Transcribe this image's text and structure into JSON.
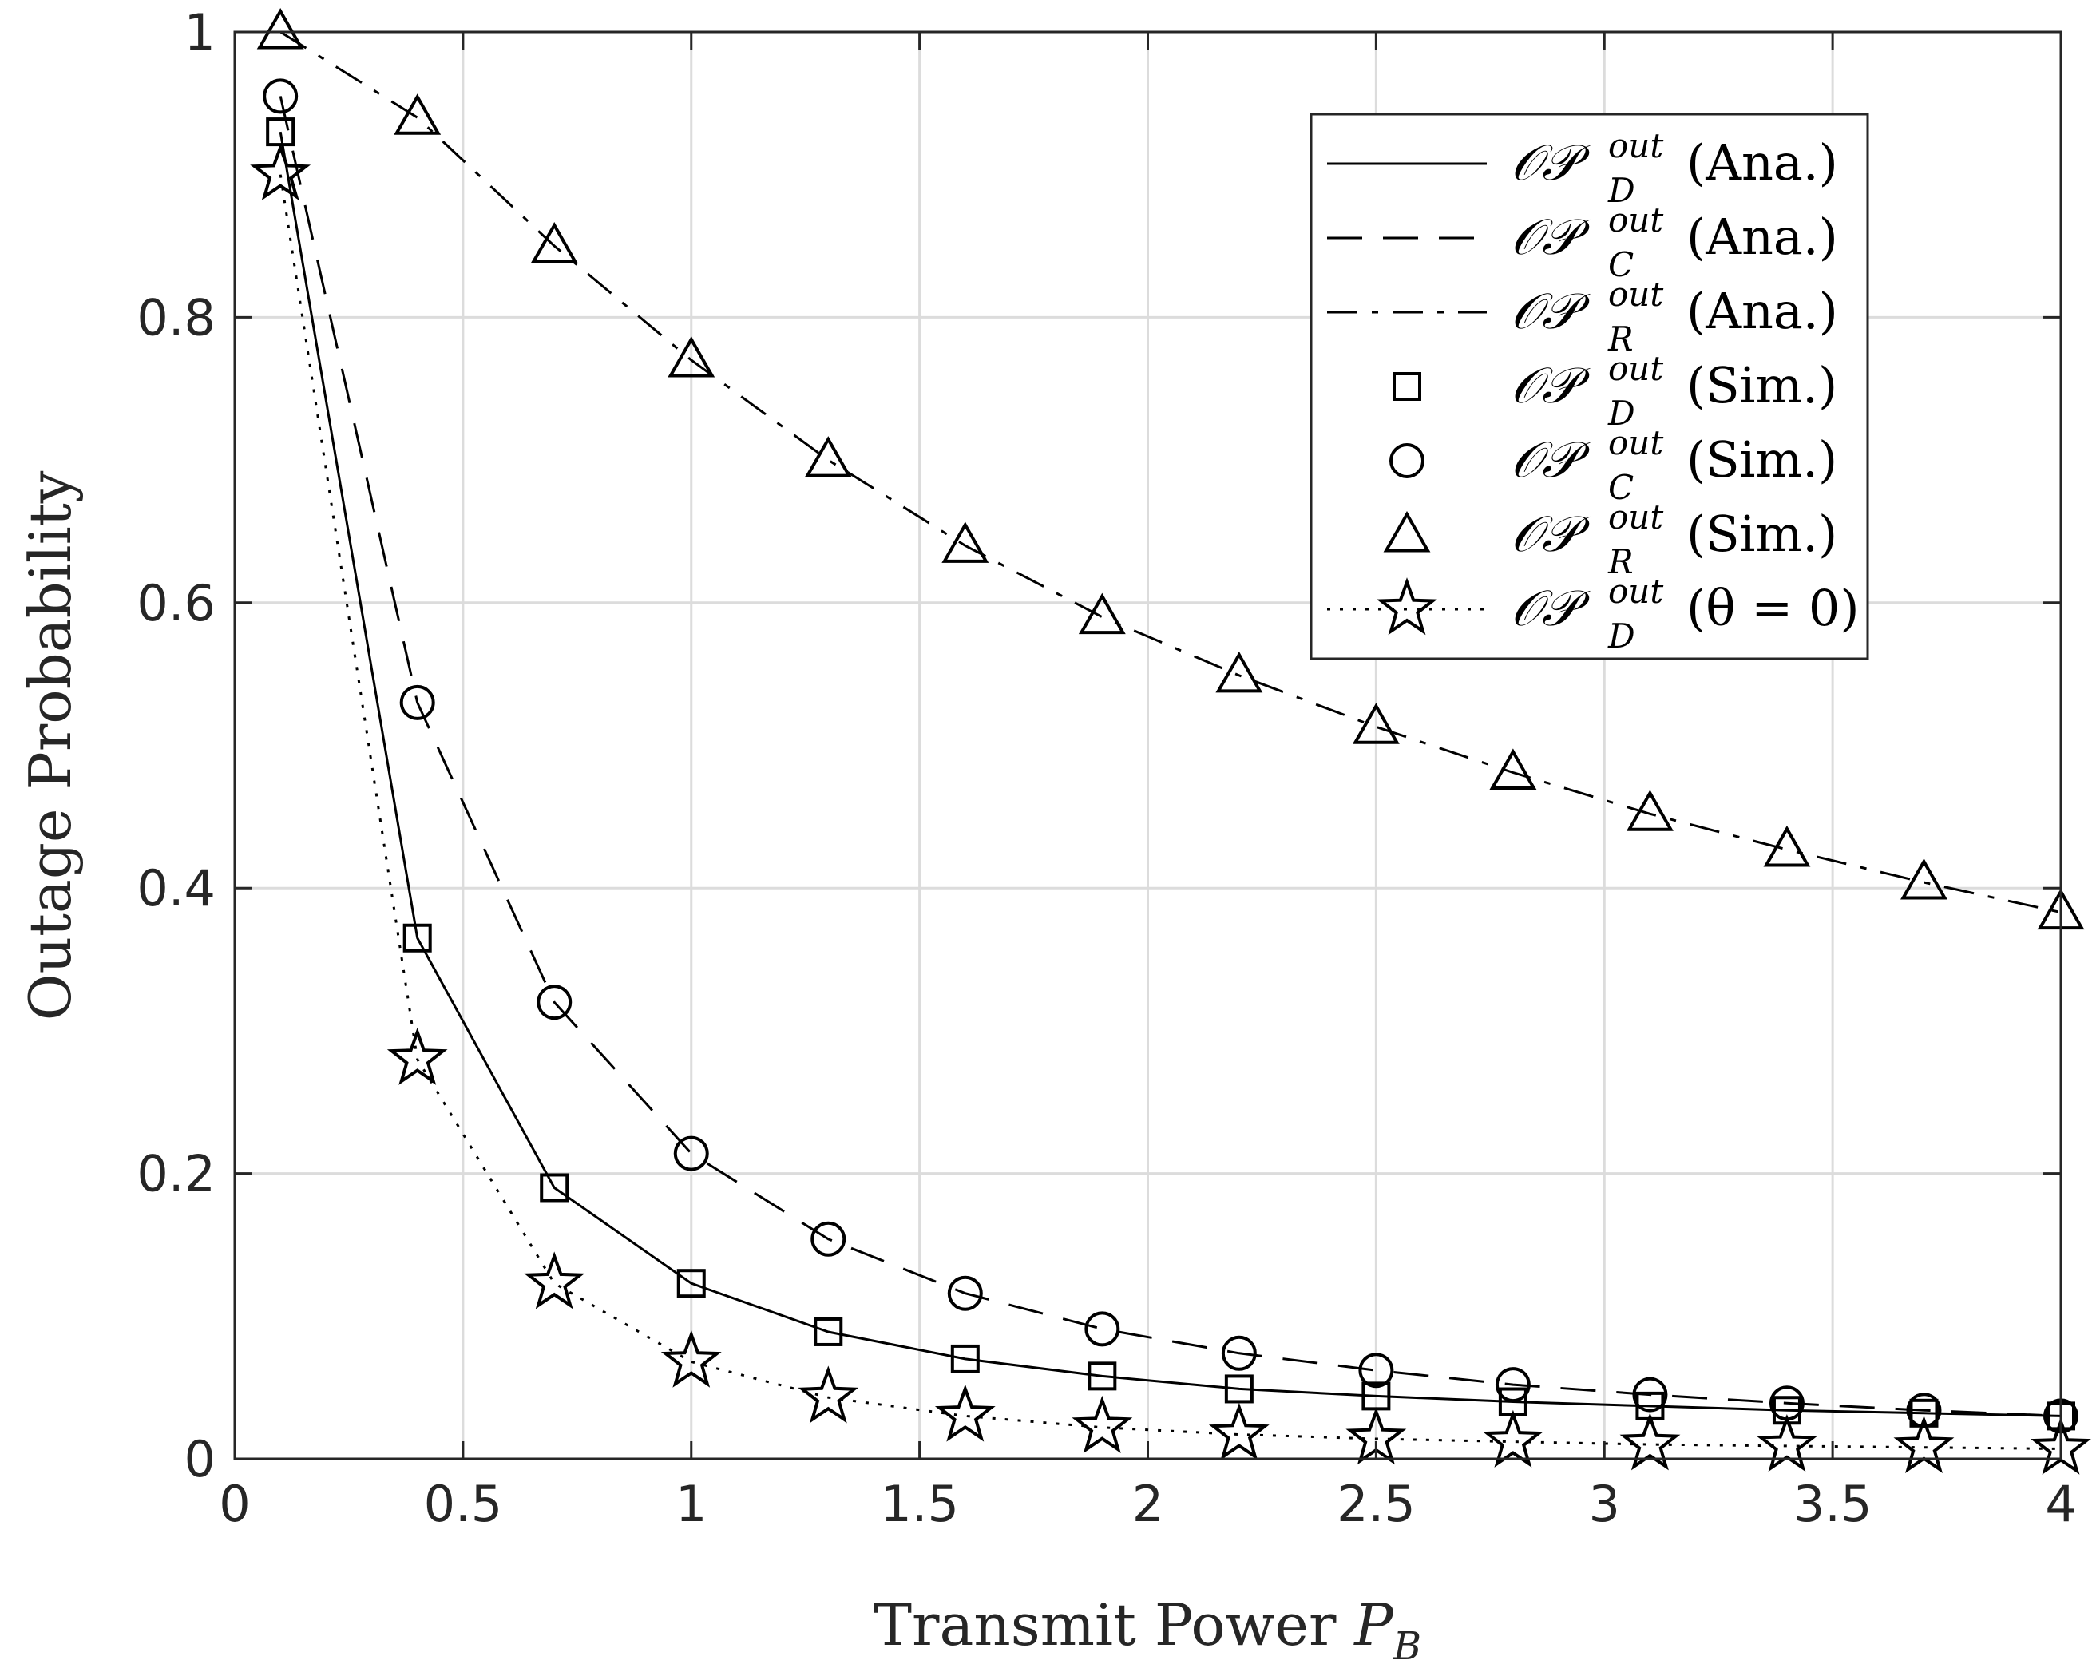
{
  "chart_data": {
    "type": "line",
    "title": "",
    "xlabel": "Transmit Power",
    "xlabel_symbol": "P",
    "xlabel_subscript": "B",
    "ylabel": "Outage Probability",
    "xlim": [
      0,
      4
    ],
    "ylim": [
      0,
      1
    ],
    "xticks": [
      0,
      0.5,
      1,
      1.5,
      2,
      2.5,
      3,
      3.5,
      4
    ],
    "xtick_labels": [
      "0",
      "0.5",
      "1",
      "1.5",
      "2",
      "2.5",
      "3",
      "3.5",
      "4"
    ],
    "yticks": [
      0,
      0.2,
      0.4,
      0.6,
      0.8,
      1
    ],
    "ytick_labels": [
      "0",
      "0.2",
      "0.4",
      "0.6",
      "0.8",
      "1"
    ],
    "grid": true,
    "legend_position": "top-right",
    "x": [
      0.1,
      0.4,
      0.7,
      1.0,
      1.3,
      1.6,
      1.9,
      2.2,
      2.5,
      2.8,
      3.1,
      3.4,
      3.7,
      4.0
    ],
    "series": [
      {
        "name": "OP_D^out (Ana.)",
        "label_sub": "D",
        "label_tail": "(Ana.)",
        "style": "solid",
        "marker": "none",
        "values": [
          0.93,
          0.365,
          0.19,
          0.123,
          0.089,
          0.07,
          0.058,
          0.049,
          0.044,
          0.04,
          0.037,
          0.034,
          0.032,
          0.03
        ]
      },
      {
        "name": "OP_C^out (Ana.)",
        "label_sub": "C",
        "label_tail": "(Ana.)",
        "style": "dashed",
        "marker": "none",
        "values": [
          0.955,
          0.53,
          0.32,
          0.214,
          0.154,
          0.116,
          0.091,
          0.074,
          0.062,
          0.052,
          0.045,
          0.039,
          0.034,
          0.03
        ]
      },
      {
        "name": "OP_R^out (Ana.)",
        "label_sub": "R",
        "label_tail": "(Ana.)",
        "style": "dashdot",
        "marker": "none",
        "values": [
          1.0,
          0.94,
          0.85,
          0.77,
          0.7,
          0.64,
          0.59,
          0.549,
          0.513,
          0.481,
          0.452,
          0.427,
          0.404,
          0.383
        ]
      },
      {
        "name": "OP_D^out (Sim.)",
        "label_sub": "D",
        "label_tail": "(Sim.)",
        "style": "none",
        "marker": "square",
        "values": [
          0.93,
          0.365,
          0.19,
          0.123,
          0.089,
          0.07,
          0.058,
          0.049,
          0.044,
          0.04,
          0.037,
          0.034,
          0.032,
          0.03
        ]
      },
      {
        "name": "OP_C^out (Sim.)",
        "label_sub": "C",
        "label_tail": "(Sim.)",
        "style": "none",
        "marker": "circle",
        "values": [
          0.955,
          0.53,
          0.32,
          0.214,
          0.154,
          0.116,
          0.091,
          0.074,
          0.062,
          0.052,
          0.045,
          0.039,
          0.034,
          0.03
        ]
      },
      {
        "name": "OP_R^out (Sim.)",
        "label_sub": "R",
        "label_tail": "(Sim.)",
        "style": "none",
        "marker": "triangle",
        "values": [
          1.0,
          0.94,
          0.85,
          0.77,
          0.7,
          0.64,
          0.59,
          0.549,
          0.513,
          0.481,
          0.452,
          0.427,
          0.404,
          0.383
        ]
      },
      {
        "name": "OP_D^out (θ = 0)",
        "label_sub": "D",
        "label_tail": "(θ = 0)",
        "style": "dotted",
        "marker": "star",
        "values": [
          0.9,
          0.28,
          0.123,
          0.068,
          0.043,
          0.03,
          0.022,
          0.017,
          0.014,
          0.012,
          0.01,
          0.009,
          0.008,
          0.007
        ]
      }
    ],
    "legend_prefix": "𝒪𝒫",
    "legend_sup": "out"
  }
}
